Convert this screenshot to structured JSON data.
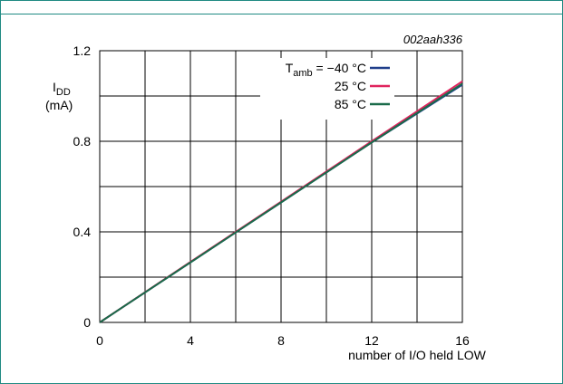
{
  "chart_data": {
    "type": "line",
    "figure_id": "002aah336",
    "ylabel_main": "I",
    "ylabel_sub": "DD",
    "ylabel_unit": "(mA)",
    "xlabel": "number of I/O held LOW",
    "xlim": [
      0,
      16
    ],
    "ylim": [
      0,
      1.2
    ],
    "x_ticks": [
      "0",
      "4",
      "8",
      "12",
      "16"
    ],
    "y_ticks": [
      "0",
      "0.4",
      "0.8",
      "1.2"
    ],
    "grid": true,
    "legend_position": "top-right",
    "legend_prefix_main": "T",
    "legend_prefix_sub": "amb",
    "legend_prefix_eq": " = ",
    "series": [
      {
        "name": "−40 °C",
        "color": "#1f3e8a",
        "x": [
          0,
          4,
          8,
          12,
          16
        ],
        "y": [
          0,
          0.265,
          0.53,
          0.795,
          1.05
        ]
      },
      {
        "name": "25 °C",
        "color": "#e0245e",
        "x": [
          0,
          4,
          8,
          12,
          16
        ],
        "y": [
          0,
          0.267,
          0.533,
          0.8,
          1.065
        ]
      },
      {
        "name": "85 °C",
        "color": "#1a6b4a",
        "x": [
          0,
          4,
          8,
          12,
          16
        ],
        "y": [
          0,
          0.265,
          0.53,
          0.795,
          1.055
        ]
      }
    ]
  }
}
